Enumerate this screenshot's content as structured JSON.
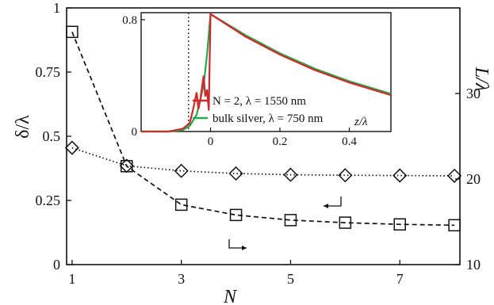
{
  "colors": {
    "series_red": "#cc2a2a",
    "series_green": "#2aa84a",
    "ink": "#111111"
  },
  "chart_data": [
    {
      "type": "line",
      "xlabel": "N",
      "ylabel_left": "δ/λ",
      "ylabel_right": "L/λ",
      "x_ticks": [
        "1",
        "3",
        "5",
        "7"
      ],
      "y_left_ticks": [
        "0",
        "0.25",
        "0.5",
        "0.75",
        "1"
      ],
      "y_right_ticks": [
        "10",
        "20",
        "30"
      ],
      "xlim": [
        0.9,
        8.1
      ],
      "ylim_left": [
        0,
        1
      ],
      "ylim_right": [
        10,
        40
      ],
      "series": [
        {
          "axis": "left",
          "marker": "diamond",
          "style": "dotted",
          "x": [
            1,
            2,
            3,
            4,
            5,
            6,
            7,
            8
          ],
          "y": [
            0.455,
            0.385,
            0.365,
            0.355,
            0.35,
            0.348,
            0.347,
            0.346
          ]
        },
        {
          "axis": "right",
          "marker": "square",
          "style": "dashed",
          "x": [
            1,
            2,
            3,
            4,
            5,
            6,
            7,
            8
          ],
          "y": [
            37.2,
            21.5,
            17.0,
            15.8,
            15.2,
            14.9,
            14.7,
            14.6
          ]
        }
      ],
      "grid": false
    },
    {
      "type": "line",
      "xlabel": "z/λ",
      "x_ticks": [
        "0",
        "0.2",
        "0.4"
      ],
      "y_ticks": [
        "0",
        "0.8"
      ],
      "xlim": [
        -0.2,
        0.52
      ],
      "ylim": [
        0,
        0.85
      ],
      "series": [
        {
          "name": "N = 2, λ = 1550 nm",
          "color": "#cc2a2a",
          "x": [
            -0.2,
            -0.12,
            -0.08,
            -0.06,
            -0.05,
            -0.04,
            -0.035,
            -0.03,
            -0.02,
            -0.015,
            -0.01,
            -0.005,
            0,
            0.1,
            0.2,
            0.3,
            0.4,
            0.52
          ],
          "y": [
            0.0,
            0.0,
            0.02,
            0.06,
            0.16,
            0.28,
            0.16,
            0.22,
            0.4,
            0.25,
            0.3,
            0.15,
            0.84,
            0.68,
            0.55,
            0.44,
            0.35,
            0.26
          ]
        },
        {
          "name": "bulk silver, λ = 750 nm",
          "color": "#2aa84a",
          "x": [
            -0.2,
            -0.12,
            -0.08,
            -0.06,
            -0.04,
            -0.02,
            -0.01,
            0,
            0.1,
            0.2,
            0.3,
            0.4,
            0.52
          ],
          "y": [
            0.0,
            0.0,
            0.01,
            0.04,
            0.12,
            0.33,
            0.55,
            0.84,
            0.69,
            0.56,
            0.45,
            0.36,
            0.27
          ]
        }
      ],
      "grid": false
    }
  ]
}
